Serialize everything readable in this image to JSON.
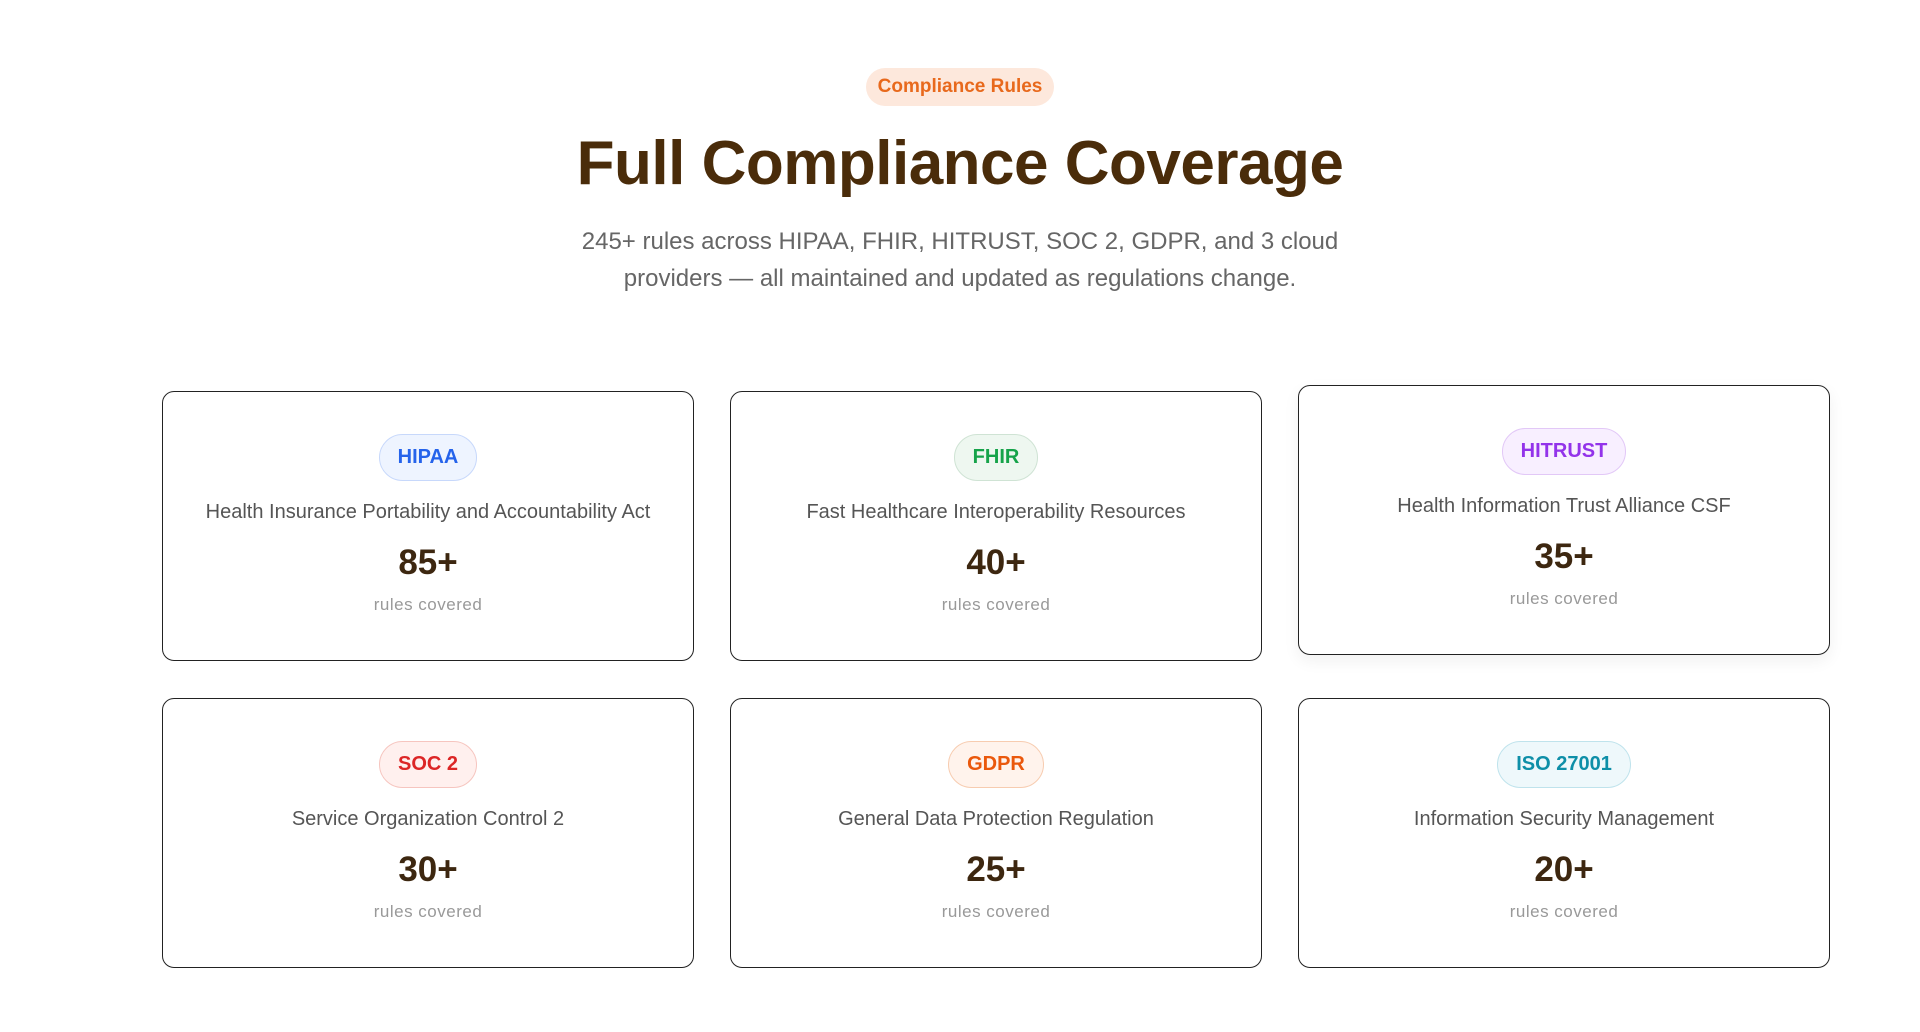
{
  "header": {
    "badge": "Compliance Rules",
    "title": "Full Compliance Coverage",
    "subtitle": "245+ rules across HIPAA, FHIR, HITRUST, SOC 2, GDPR, and 3 cloud providers — all maintained and updated as regulations change."
  },
  "cards": [
    {
      "tag": "HIPAA",
      "name": "Health Insurance Portability and Accountability Act",
      "count": "85+",
      "unit": "rules covered"
    },
    {
      "tag": "FHIR",
      "name": "Fast Healthcare Interoperability Resources",
      "count": "40+",
      "unit": "rules covered"
    },
    {
      "tag": "HITRUST",
      "name": "Health Information Trust Alliance CSF",
      "count": "35+",
      "unit": "rules covered"
    },
    {
      "tag": "SOC 2",
      "name": "Service Organization Control 2",
      "count": "30+",
      "unit": "rules covered"
    },
    {
      "tag": "GDPR",
      "name": "General Data Protection Regulation",
      "count": "25+",
      "unit": "rules covered"
    },
    {
      "tag": "ISO 27001",
      "name": "Information Security Management",
      "count": "20+",
      "unit": "rules covered"
    }
  ]
}
